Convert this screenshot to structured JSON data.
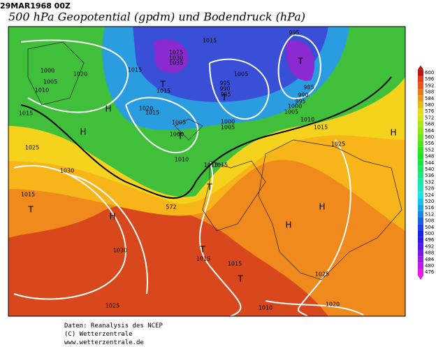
{
  "header": {
    "date": "29MAR1968 00Z",
    "title": "500 hPa Geopotential (gpdm) und Bodendruck (hPa)"
  },
  "isobar_labels": [
    1015,
    995,
    1025,
    1030,
    1035,
    1000,
    1020,
    1015,
    1005,
    1005,
    1010,
    995,
    990,
    985,
    985,
    990,
    995,
    1015,
    1020,
    1015,
    1000,
    1005,
    1010,
    1015,
    1015,
    1005,
    1000,
    1005,
    1000,
    1010,
    1025,
    1025,
    1030,
    1015,
    1015,
    1015,
    1030,
    1015,
    1015,
    1025,
    1025,
    1010,
    1020
  ],
  "height_label": 572,
  "pressure_centers": [
    "T",
    "T",
    "T",
    "H",
    "H",
    "T",
    "T",
    "T",
    "H",
    "H",
    "H",
    "T",
    "T",
    "H"
  ],
  "colorbar": {
    "ticks": [
      600,
      596,
      592,
      588,
      584,
      580,
      576,
      572,
      568,
      564,
      560,
      556,
      552,
      548,
      544,
      540,
      536,
      532,
      528,
      524,
      520,
      516,
      512,
      508,
      504,
      500,
      496,
      492,
      488,
      484,
      480,
      476
    ]
  },
  "footer": {
    "source": "Daten: Reanalysis des NCEP",
    "copyright": "(C) Wetterzentrale",
    "url": "www.wetterzentrale.de"
  }
}
